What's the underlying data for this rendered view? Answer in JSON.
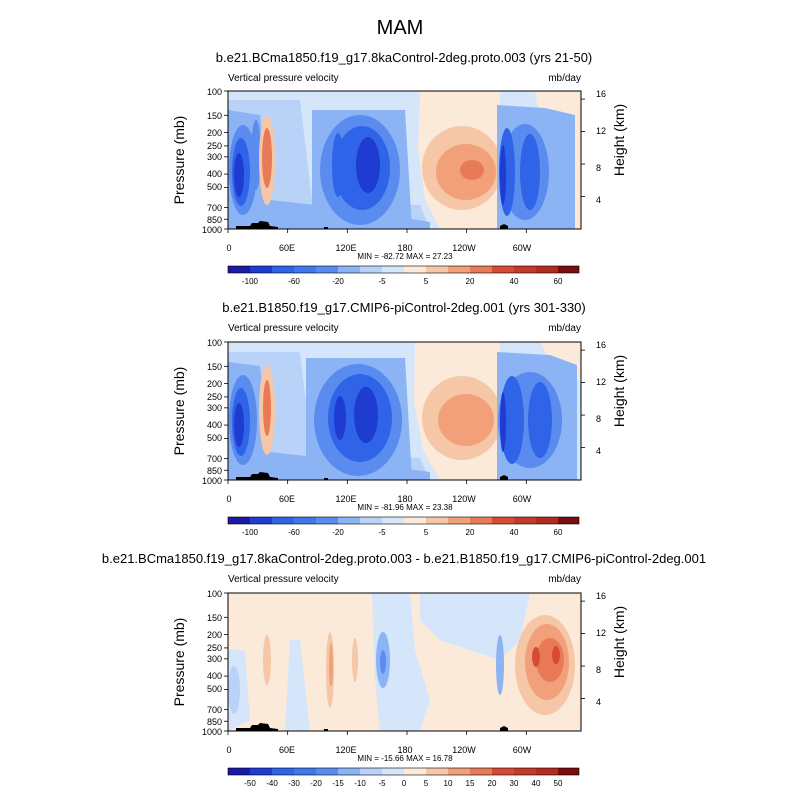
{
  "title": "MAM",
  "palette": {
    "blue_deep": "#1a1aa6",
    "blue_1": "#1e3cd0",
    "blue_2": "#2f64e8",
    "blue_3": "#5a8cf0",
    "blue_4": "#8cb4f4",
    "blue_5": "#b9d2f7",
    "blue_6": "#d6e6fa",
    "cream": "#fbe9d9",
    "orange_1": "#f6c7a6",
    "orange_2": "#f1a07a",
    "orange_3": "#e97a57",
    "red_1": "#d94a35",
    "red_2": "#b52a20",
    "red_3": "#7a0d0d",
    "land": "#000000"
  },
  "panels": [
    {
      "title": "b.e21.BCma1850.f19_g17.8kaControl-2deg.proto.003 (yrs 21-50)",
      "left_label": "Vertical pressure velocity",
      "right_label": "mb/day",
      "min_max": "MIN = -82.72   MAX =  27.23",
      "colorbar_labels": [
        "-100",
        "-60",
        "-20",
        "-5",
        "5",
        "20",
        "40",
        "60"
      ]
    },
    {
      "title": "b.e21.B1850.f19_g17.CMIP6-piControl-2deg.001 (yrs 301-330)",
      "left_label": "Vertical pressure velocity",
      "right_label": "mb/day",
      "min_max": "MIN = -81.96   MAX =  23.38",
      "colorbar_labels": [
        "-100",
        "-60",
        "-20",
        "-5",
        "5",
        "20",
        "40",
        "60"
      ]
    },
    {
      "title": "b.e21.BCma1850.f19_g17.8kaControl-2deg.proto.003 - b.e21.B1850.f19_g17.CMIP6-piControl-2deg.001",
      "left_label": "Vertical pressure velocity",
      "right_label": "mb/day",
      "min_max": "MIN = -15.66   MAX =  16.78",
      "colorbar_labels": [
        "-50",
        "-40",
        "-30",
        "-20",
        "-15",
        "-10",
        "-5",
        "0",
        "5",
        "10",
        "15",
        "20",
        "30",
        "40",
        "50"
      ]
    }
  ],
  "chart_data": {
    "type": "heatmap",
    "title": "MAM",
    "variable": "Vertical pressure velocity",
    "units": "mb/day",
    "xlabel": "",
    "ylabel": "Pressure (mb)",
    "y2label": "Height (km)",
    "x_ticks": [
      "0",
      "60E",
      "120E",
      "180",
      "120W",
      "60W"
    ],
    "x_tick_values": [
      0,
      60,
      120,
      180,
      240,
      300
    ],
    "xlim": [
      0,
      355
    ],
    "y_ticks": [
      "100",
      "150",
      "200",
      "250",
      "300",
      "400",
      "500",
      "700",
      "850",
      "1000"
    ],
    "y_tick_values": [
      100,
      150,
      200,
      250,
      300,
      400,
      500,
      700,
      850,
      1000
    ],
    "ylim": [
      1000,
      100
    ],
    "y2_ticks": [
      "4",
      "8",
      "12",
      "16"
    ],
    "y2_tick_values": [
      4,
      8,
      12,
      16
    ],
    "panels": [
      {
        "name": "8ka Control",
        "min": -82.72,
        "max": 27.23
      },
      {
        "name": "piControl",
        "min": -81.96,
        "max": 23.38
      },
      {
        "name": "8ka Control - piControl",
        "min": -15.66,
        "max": 16.78
      }
    ],
    "colorbar_abs": [
      -100,
      -60,
      -20,
      -5,
      5,
      20,
      40,
      60
    ],
    "colorbar_diff": [
      -50,
      -40,
      -30,
      -20,
      -15,
      -10,
      -5,
      0,
      5,
      10,
      15,
      20,
      30,
      40,
      50
    ]
  }
}
